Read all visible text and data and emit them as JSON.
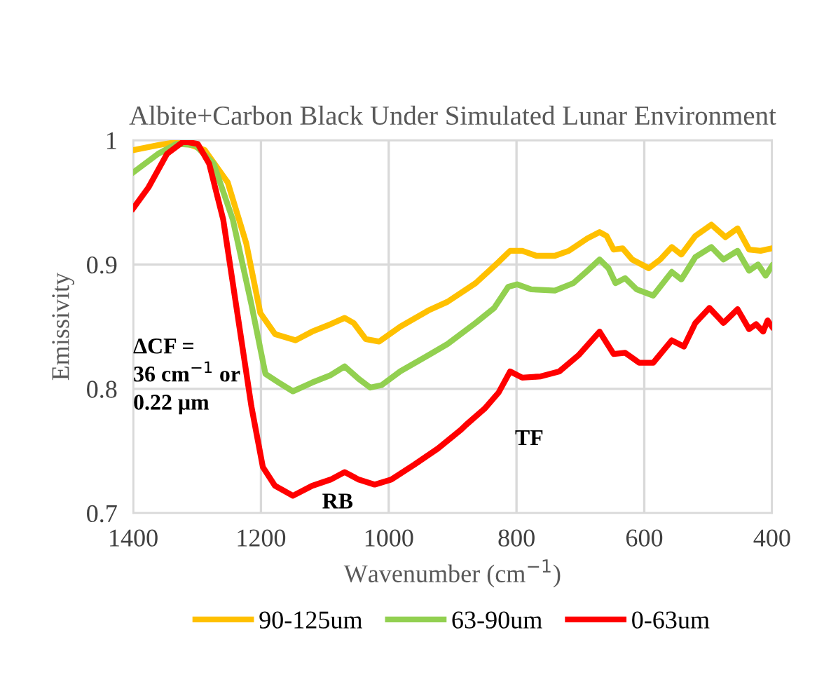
{
  "chart_data": {
    "type": "line",
    "title": "Albite+Carbon Black Under Simulated Lunar Environment",
    "xlabel": "Wavenumber (cm$^{−1}$)",
    "ylabel": "Emissivity",
    "xlim": [
      1400,
      400
    ],
    "xticks": [
      1400,
      1200,
      1000,
      800,
      600,
      400
    ],
    "ylim": [
      0.7,
      1
    ],
    "yticks": [
      0.7,
      0.8,
      0.9,
      1
    ],
    "grid": true,
    "legend": "bottom",
    "marker": "none",
    "line_style": "solid",
    "annotations": [
      "ΔCF =\n36 cm$^{−1}$ or\n0.22 μm",
      "RB",
      "TF"
    ],
    "series": [
      {
        "name": "90-125um",
        "color": "#ffc000",
        "x": [
          1400,
          1361,
          1325,
          1288,
          1252,
          1223,
          1201,
          1178,
          1146,
          1120,
          1091,
          1069,
          1055,
          1036,
          1015,
          982,
          938,
          908,
          864,
          828,
          810,
          791,
          769,
          740,
          718,
          689,
          670,
          659,
          648,
          634,
          619,
          593,
          575,
          557,
          542,
          520,
          495,
          473,
          454,
          436,
          418,
          400
        ],
        "values": [
          0.992,
          0.996,
          0.999,
          0.992,
          0.966,
          0.917,
          0.861,
          0.844,
          0.839,
          0.846,
          0.852,
          0.857,
          0.853,
          0.84,
          0.838,
          0.85,
          0.863,
          0.87,
          0.885,
          0.902,
          0.911,
          0.911,
          0.907,
          0.907,
          0.911,
          0.921,
          0.926,
          0.923,
          0.912,
          0.913,
          0.904,
          0.897,
          0.904,
          0.914,
          0.908,
          0.923,
          0.932,
          0.922,
          0.929,
          0.912,
          0.911,
          0.913
        ]
      },
      {
        "name": "63-90um",
        "color": "#92d050",
        "x": [
          1400,
          1361,
          1332,
          1303,
          1274,
          1244,
          1215,
          1193,
          1172,
          1150,
          1120,
          1091,
          1069,
          1047,
          1029,
          1011,
          982,
          938,
          908,
          864,
          835,
          813,
          799,
          777,
          740,
          711,
          689,
          670,
          656,
          645,
          630,
          612,
          586,
          557,
          542,
          520,
          495,
          476,
          454,
          436,
          422,
          410,
          400
        ],
        "values": [
          0.974,
          0.989,
          0.997,
          0.996,
          0.981,
          0.936,
          0.868,
          0.812,
          0.805,
          0.798,
          0.805,
          0.811,
          0.818,
          0.808,
          0.801,
          0.803,
          0.814,
          0.827,
          0.836,
          0.853,
          0.865,
          0.882,
          0.884,
          0.88,
          0.879,
          0.885,
          0.895,
          0.904,
          0.897,
          0.885,
          0.889,
          0.88,
          0.875,
          0.894,
          0.888,
          0.906,
          0.914,
          0.904,
          0.911,
          0.895,
          0.9,
          0.891,
          0.899
        ]
      },
      {
        "name": "0-63um",
        "color": "#ff0000",
        "x": [
          1400,
          1376,
          1347,
          1321,
          1299,
          1281,
          1259,
          1237,
          1215,
          1197,
          1178,
          1150,
          1120,
          1091,
          1069,
          1047,
          1022,
          996,
          960,
          923,
          887,
          879,
          850,
          828,
          810,
          791,
          762,
          733,
          703,
          670,
          648,
          630,
          608,
          586,
          557,
          538,
          520,
          498,
          476,
          454,
          436,
          425,
          414,
          407,
          400
        ],
        "values": [
          0.945,
          0.962,
          0.989,
          0.999,
          0.997,
          0.981,
          0.936,
          0.861,
          0.786,
          0.737,
          0.722,
          0.714,
          0.722,
          0.727,
          0.733,
          0.727,
          0.723,
          0.727,
          0.739,
          0.752,
          0.767,
          0.771,
          0.784,
          0.797,
          0.814,
          0.809,
          0.81,
          0.814,
          0.827,
          0.846,
          0.828,
          0.829,
          0.821,
          0.821,
          0.839,
          0.834,
          0.853,
          0.865,
          0.853,
          0.864,
          0.848,
          0.852,
          0.846,
          0.855,
          0.85
        ]
      }
    ]
  }
}
